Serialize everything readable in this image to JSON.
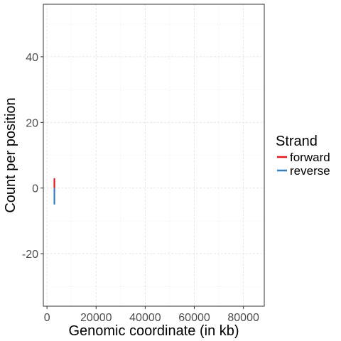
{
  "chart_data": {
    "type": "bar",
    "xlabel": "Genomic coordinate (in kb)",
    "ylabel": "Count per position",
    "xlim": [
      -1500,
      88500
    ],
    "ylim": [
      -36,
      56
    ],
    "x_ticks": [
      0,
      20000,
      40000,
      60000,
      80000
    ],
    "x_tick_labels": [
      "0",
      "20000",
      "40000",
      "60000",
      "80000"
    ],
    "y_ticks": [
      -20,
      0,
      20,
      40
    ],
    "y_tick_labels": [
      "-20",
      "0",
      "20",
      "40"
    ],
    "grid": true,
    "legend": {
      "title": "Strand",
      "placement": "right",
      "entries": [
        {
          "label": "forward",
          "color": "#e41a1c"
        },
        {
          "label": "reverse",
          "color": "#377eb8"
        }
      ]
    },
    "series": [
      {
        "name": "forward",
        "color": "#e41a1c",
        "points": [
          {
            "x": 3000,
            "y": 3
          }
        ]
      },
      {
        "name": "reverse",
        "color": "#377eb8",
        "points": [
          {
            "x": 3000,
            "y": -5
          }
        ]
      }
    ]
  }
}
